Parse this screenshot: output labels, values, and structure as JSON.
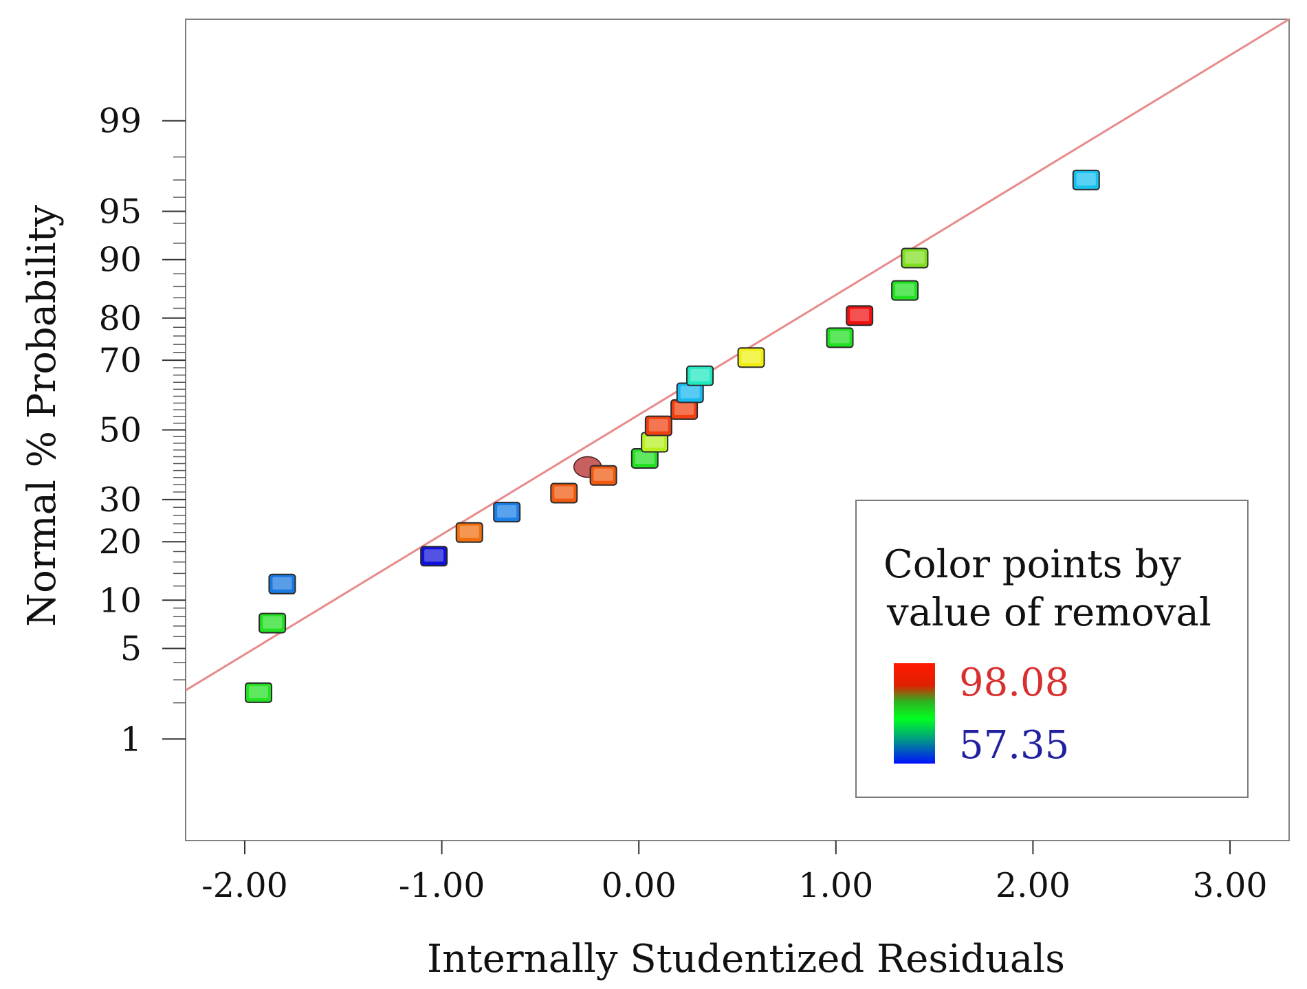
{
  "chart_data": {
    "type": "scatter",
    "title": "",
    "xlabel": "Internally Studentized Residuals",
    "ylabel": "Normal % Probability",
    "xlim": [
      -2.3,
      3.3
    ],
    "ylim_probability": [
      0.1,
      99.9
    ],
    "x_ticks": [
      {
        "value": -2,
        "label": "-2.00"
      },
      {
        "value": -1,
        "label": "-1.00"
      },
      {
        "value": 0,
        "label": "0.00"
      },
      {
        "value": 1,
        "label": "1.00"
      },
      {
        "value": 2,
        "label": "2.00"
      },
      {
        "value": 3,
        "label": "3.00"
      }
    ],
    "y_ticks": [
      {
        "value": 1,
        "label": "1"
      },
      {
        "value": 5,
        "label": "5"
      },
      {
        "value": 10,
        "label": "10"
      },
      {
        "value": 20,
        "label": "20"
      },
      {
        "value": 30,
        "label": "30"
      },
      {
        "value": 50,
        "label": "50"
      },
      {
        "value": 70,
        "label": "70"
      },
      {
        "value": 80,
        "label": "80"
      },
      {
        "value": 90,
        "label": "90"
      },
      {
        "value": 95,
        "label": "95"
      },
      {
        "value": 99,
        "label": "99"
      }
    ],
    "minor_y_ticks": [
      2,
      3,
      4,
      6,
      7,
      8,
      9,
      12,
      14,
      16,
      18,
      22,
      24,
      26,
      28,
      32,
      34,
      36,
      38,
      40,
      42,
      44,
      46,
      48,
      52,
      54,
      56,
      58,
      60,
      62,
      64,
      66,
      68,
      72,
      74,
      76,
      78,
      82,
      84,
      86,
      88,
      92,
      94,
      96,
      97,
      98
    ],
    "reference_line": {
      "color": "#e88a8a",
      "points": [
        {
          "x": -2.3,
          "p": 2.5
        },
        {
          "x": 3.3,
          "p": 99.9
        }
      ]
    },
    "points": [
      {
        "x": -1.93,
        "p": 2.4,
        "color": "#22e022",
        "shape": "square"
      },
      {
        "x": -1.86,
        "p": 7.3,
        "color": "#22e022",
        "shape": "square"
      },
      {
        "x": -1.81,
        "p": 12.3,
        "color": "#1a78e0",
        "shape": "square"
      },
      {
        "x": -1.04,
        "p": 17.1,
        "color": "#1010d8",
        "shape": "square"
      },
      {
        "x": -0.86,
        "p": 22.0,
        "color": "#f07010",
        "shape": "square"
      },
      {
        "x": -0.67,
        "p": 26.8,
        "color": "#1a80e8",
        "shape": "square"
      },
      {
        "x": -0.38,
        "p": 31.7,
        "color": "#f05a10",
        "shape": "square"
      },
      {
        "x": -0.26,
        "p": 39.0,
        "color": "#c86060",
        "shape": "circle"
      },
      {
        "x": -0.18,
        "p": 36.6,
        "color": "#f05a10",
        "shape": "square"
      },
      {
        "x": 0.03,
        "p": 41.5,
        "color": "#22e022",
        "shape": "square"
      },
      {
        "x": 0.08,
        "p": 46.3,
        "color": "#b8f020",
        "shape": "square"
      },
      {
        "x": 0.1,
        "p": 51.2,
        "color": "#f04010",
        "shape": "square"
      },
      {
        "x": 0.23,
        "p": 56.1,
        "color": "#f04010",
        "shape": "square"
      },
      {
        "x": 0.26,
        "p": 61.0,
        "color": "#18b8f0",
        "shape": "square"
      },
      {
        "x": 0.31,
        "p": 65.8,
        "color": "#20e8c0",
        "shape": "square"
      },
      {
        "x": 0.57,
        "p": 70.7,
        "color": "#f0f010",
        "shape": "square"
      },
      {
        "x": 1.02,
        "p": 75.6,
        "color": "#22e022",
        "shape": "square"
      },
      {
        "x": 1.12,
        "p": 80.5,
        "color": "#f01010",
        "shape": "square"
      },
      {
        "x": 1.35,
        "p": 85.3,
        "color": "#22e022",
        "shape": "square"
      },
      {
        "x": 1.4,
        "p": 90.2,
        "color": "#80e020",
        "shape": "square"
      },
      {
        "x": 2.27,
        "p": 97.0,
        "color": "#18c0f0",
        "shape": "square"
      }
    ],
    "legend": {
      "position": "bottom-right",
      "title_line1": "Color points by",
      "title_line2": "value of removal",
      "max_label": "98.08",
      "min_label": "57.35",
      "max_color": "#d83030",
      "min_color": "#2020a0"
    }
  }
}
